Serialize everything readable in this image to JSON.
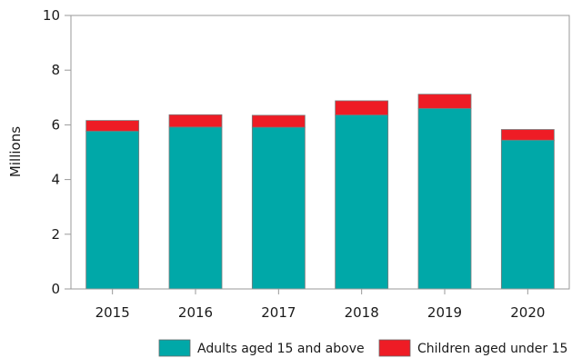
{
  "chart_data": {
    "type": "bar",
    "stacked": true,
    "categories": [
      "2015",
      "2016",
      "2017",
      "2018",
      "2019",
      "2020"
    ],
    "series": [
      {
        "name": "Adults aged 15 and above",
        "color": "#00A8A8",
        "values": [
          5.77,
          5.92,
          5.91,
          6.36,
          6.6,
          5.44
        ]
      },
      {
        "name": "Children aged under 15",
        "color": "#EE1C25",
        "values": [
          0.39,
          0.45,
          0.44,
          0.52,
          0.52,
          0.39
        ]
      }
    ],
    "ylabel": "Millions",
    "ylim": [
      0,
      10
    ],
    "yticks": [
      "0",
      "2",
      "4",
      "6",
      "8",
      "10"
    ],
    "grid": false,
    "legend_position": "bottom-right"
  }
}
